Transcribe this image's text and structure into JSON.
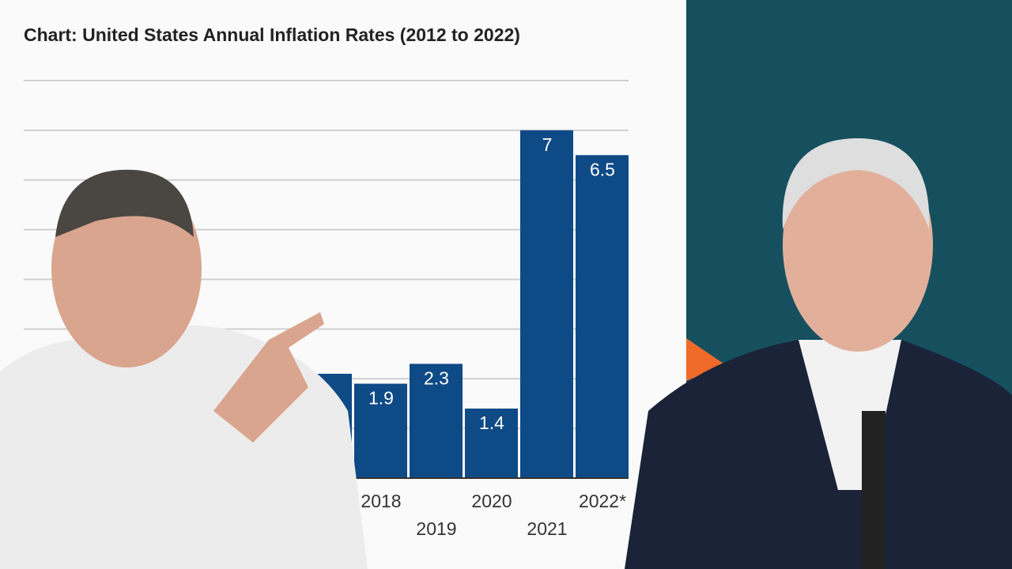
{
  "chart_data": {
    "type": "bar",
    "title": "Chart: United States Annual Inflation Rates (2012 to 2022)",
    "categories": [
      null,
      "2018",
      "2019",
      "2020",
      "2021",
      "2022*"
    ],
    "values": [
      2.1,
      1.9,
      2.3,
      1.4,
      7,
      6.5
    ],
    "value_labels": [
      null,
      "1.9",
      "2.3",
      "1.4",
      "7",
      "6.5"
    ],
    "color": "#0e4a86",
    "ylim": [
      0,
      8
    ],
    "yticks": [
      0,
      1,
      2,
      3,
      4,
      5,
      6,
      7,
      8
    ],
    "grid": true
  }
}
